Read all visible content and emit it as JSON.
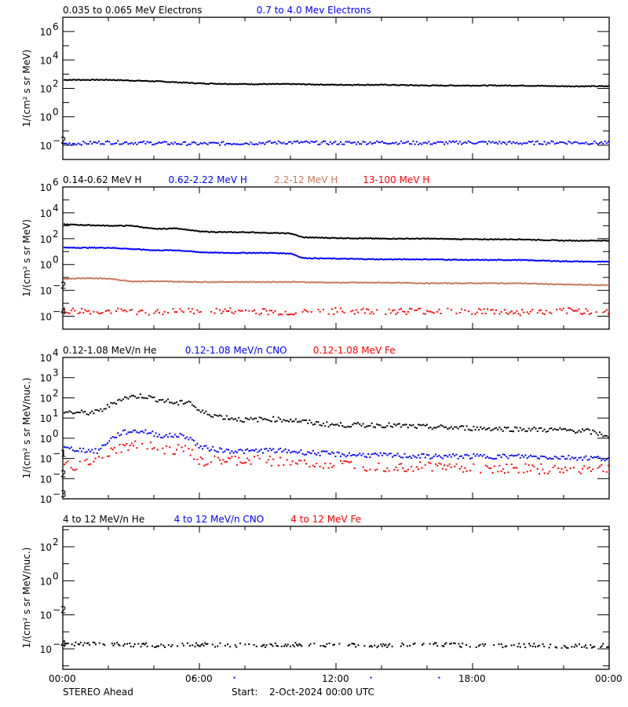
{
  "footer": {
    "spacecraft": "STEREO Ahead",
    "start_label": "Start:",
    "start_value": "2-Oct-2024 00:00 UTC"
  },
  "x_axis": {
    "tick_labels": [
      "00:00",
      "06:00",
      "12:00",
      "18:00",
      "00:00"
    ],
    "range_hours": [
      0,
      24
    ]
  },
  "colors": {
    "black": "#000000",
    "blue": "#0000ff",
    "brown": "#c87a5a",
    "red": "#ff0000"
  },
  "chart_data": [
    {
      "type": "scatter",
      "title": "",
      "xlabel": "",
      "ylabel": "1/(cm² s sr MeV)",
      "yscale": "log",
      "ylim_exp": [
        -3,
        7
      ],
      "y_tick_labels": [
        "10^-2",
        "10^0",
        "10^2",
        "10^4",
        "10^6"
      ],
      "legend": [
        "0.035 to 0.065 MeV Electrons",
        "0.7 to 4.0 Mev Electrons"
      ],
      "series": [
        {
          "name": "0.035 to 0.065 MeV Electrons",
          "color": "#000000",
          "x": [
            0,
            2,
            4,
            6,
            8,
            10,
            12,
            14,
            16,
            18,
            20,
            22,
            24
          ],
          "log10_y": [
            2.6,
            2.6,
            2.5,
            2.35,
            2.3,
            2.3,
            2.25,
            2.25,
            2.2,
            2.2,
            2.2,
            2.15,
            2.15
          ]
        },
        {
          "name": "0.7 to 4.0 Mev Electrons",
          "color": "#0000ff",
          "x": [
            0,
            2,
            4,
            6,
            8,
            10,
            12,
            14,
            16,
            18,
            20,
            22,
            24
          ],
          "log10_y": [
            -1.9,
            -1.8,
            -1.85,
            -1.9,
            -1.85,
            -1.8,
            -1.85,
            -1.8,
            -1.85,
            -1.8,
            -1.85,
            -1.8,
            -1.85
          ]
        }
      ]
    },
    {
      "type": "scatter",
      "ylabel": "1/(cm² s sr MeV)",
      "yscale": "log",
      "ylim_exp": [
        -5,
        6
      ],
      "y_tick_labels": [
        "10^-4",
        "10^-2",
        "10^0",
        "10^2",
        "10^4",
        "10^6"
      ],
      "legend": [
        "0.14-0.62 MeV H",
        "0.62-2.22 MeV H",
        "2.2-12 MeV H",
        "13-100 MeV H"
      ],
      "series": [
        {
          "name": "0.14-0.62 MeV H",
          "color": "#000000",
          "x": [
            0,
            1,
            2,
            3,
            4,
            5,
            6,
            7,
            8,
            9,
            10,
            10.5,
            12,
            14,
            16,
            18,
            20,
            22,
            24
          ],
          "log10_y": [
            3.1,
            3.05,
            3.0,
            3.0,
            2.75,
            2.8,
            2.55,
            2.5,
            2.5,
            2.45,
            2.4,
            2.1,
            2.05,
            2.0,
            2.0,
            1.95,
            1.95,
            1.85,
            1.85
          ]
        },
        {
          "name": "0.62-2.22 MeV H",
          "color": "#0000ff",
          "x": [
            0,
            1,
            2,
            3,
            4,
            5,
            6,
            7,
            8,
            9,
            10,
            10.5,
            12,
            14,
            16,
            18,
            20,
            22,
            24
          ],
          "log10_y": [
            1.3,
            1.3,
            1.3,
            1.2,
            1.1,
            1.1,
            0.95,
            0.9,
            0.9,
            0.9,
            0.85,
            0.5,
            0.45,
            0.4,
            0.4,
            0.35,
            0.35,
            0.25,
            0.2
          ]
        },
        {
          "name": "2.2-12 MeV H",
          "color": "#c87a5a",
          "x": [
            0,
            1,
            2,
            3,
            4,
            6,
            8,
            10,
            12,
            14,
            16,
            18,
            20,
            22,
            24
          ],
          "log10_y": [
            -1.1,
            -1.05,
            -1.1,
            -1.3,
            -1.3,
            -1.35,
            -1.35,
            -1.35,
            -1.4,
            -1.4,
            -1.45,
            -1.45,
            -1.45,
            -1.55,
            -1.6
          ]
        },
        {
          "name": "13-100 MeV H",
          "color": "#ff0000",
          "x": [
            0,
            2,
            4,
            6,
            8,
            10,
            12,
            14,
            16,
            18,
            20,
            22,
            24
          ],
          "log10_y": [
            -3.6,
            -3.6,
            -3.7,
            -3.6,
            -3.6,
            -3.7,
            -3.6,
            -3.6,
            -3.6,
            -3.6,
            -3.7,
            -3.6,
            -3.6
          ]
        }
      ]
    },
    {
      "type": "scatter",
      "ylabel": "1/(cm² s sr MeV/nuc.)",
      "yscale": "log",
      "ylim_exp": [
        -3,
        4
      ],
      "y_tick_labels": [
        "10^-3",
        "10^-2",
        "10^-1",
        "10^0",
        "10^1",
        "10^2",
        "10^3",
        "10^4"
      ],
      "legend": [
        "0.12-1.08 MeV/n He",
        "0.12-1.08 MeV/n CNO",
        "0.12-1.08 MeV Fe"
      ],
      "series": [
        {
          "name": "0.12-1.08 MeV/n He",
          "color": "#000000",
          "x": [
            0,
            1,
            1.5,
            2,
            2.5,
            3,
            3.5,
            4,
            4.5,
            5,
            5.5,
            6,
            7,
            8,
            9,
            10,
            11,
            12,
            14,
            16,
            18,
            20,
            22,
            23,
            24
          ],
          "log10_y": [
            1.3,
            1.25,
            1.3,
            1.6,
            1.95,
            2.05,
            2.1,
            1.95,
            1.85,
            1.7,
            1.85,
            1.3,
            1.05,
            0.9,
            0.95,
            0.9,
            0.75,
            0.65,
            0.65,
            0.55,
            0.5,
            0.45,
            0.4,
            0.35,
            0.1
          ]
        },
        {
          "name": "0.12-1.08 MeV/n CNO",
          "color": "#0000ff",
          "x": [
            0,
            1,
            1.5,
            2,
            2.5,
            3,
            3.5,
            4,
            4.5,
            5,
            5.5,
            6,
            7,
            8,
            9,
            10,
            12,
            14,
            16,
            18,
            20,
            22,
            24
          ],
          "log10_y": [
            -0.5,
            -0.6,
            -0.65,
            -0.1,
            0.25,
            0.35,
            0.35,
            0.2,
            0.1,
            0.15,
            0.05,
            -0.45,
            -0.6,
            -0.65,
            -0.6,
            -0.65,
            -0.8,
            -0.85,
            -0.9,
            -0.9,
            -0.9,
            -0.95,
            -1.0
          ]
        },
        {
          "name": "0.12-1.08 MeV Fe",
          "color": "#ff0000",
          "x": [
            0,
            1,
            1.5,
            2,
            2.5,
            3,
            3.5,
            4,
            4.5,
            5,
            5.5,
            6,
            7,
            8,
            9,
            10,
            12,
            14,
            16,
            18,
            20,
            22,
            24
          ],
          "log10_y": [
            -1.4,
            -1.3,
            -1.2,
            -0.75,
            -0.5,
            -0.4,
            -0.35,
            -0.5,
            -0.6,
            -0.55,
            -0.6,
            -1.2,
            -1.1,
            -1.1,
            -1.1,
            -1.2,
            -1.3,
            -1.4,
            -1.4,
            -1.45,
            -1.5,
            -1.55,
            -1.5
          ]
        }
      ]
    },
    {
      "type": "scatter",
      "ylabel": "1/(cm² s sr MeV/nuc.)",
      "yscale": "log",
      "ylim_exp": [
        -5.2,
        3.2
      ],
      "y_tick_labels": [
        "10^-4",
        "10^-2",
        "10^0",
        "10^2"
      ],
      "legend": [
        "4 to 12 MeV/n He",
        "4 to 12 MeV/n CNO",
        "4 to 12 MeV Fe"
      ],
      "series": [
        {
          "name": "4 to 12 MeV/n He",
          "color": "#000000",
          "x": [
            0,
            2,
            4,
            6,
            8,
            10,
            12,
            14,
            16,
            18,
            20,
            22,
            24
          ],
          "log10_y": [
            -3.7,
            -3.7,
            -3.8,
            -3.75,
            -3.8,
            -3.75,
            -3.8,
            -3.8,
            -3.75,
            -3.8,
            -3.8,
            -3.85,
            -3.8
          ]
        },
        {
          "name": "4 to 12 MeV/n CNO",
          "color": "#0000ff",
          "x": [
            5.7,
            7.5,
            13.5,
            16.5
          ],
          "log10_y": [
            -5.0,
            -5.0,
            -5.0,
            -5.0
          ]
        },
        {
          "name": "4 to 12 MeV Fe",
          "color": "#ff0000",
          "x": [],
          "log10_y": []
        }
      ]
    }
  ]
}
